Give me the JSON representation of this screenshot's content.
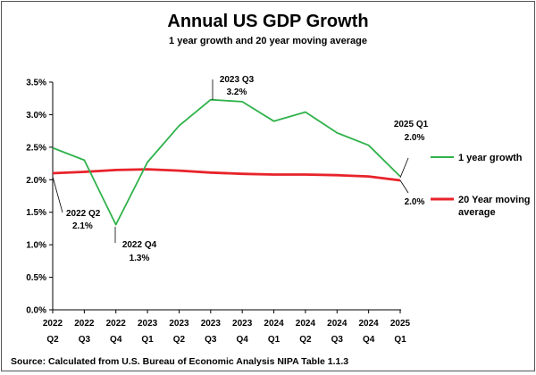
{
  "chart_data": {
    "type": "line",
    "title": "Annual US GDP Growth",
    "subtitle": "1 year growth and 20 year moving average",
    "source": "Source: Calculated from U.S. Bureau of Economic Analysis NIPA Table  1.1.3",
    "categories": [
      [
        "2022",
        "Q2"
      ],
      [
        "2022",
        "Q3"
      ],
      [
        "2022",
        "Q4"
      ],
      [
        "2023",
        "Q1"
      ],
      [
        "2023",
        "Q2"
      ],
      [
        "2023",
        "Q3"
      ],
      [
        "2023",
        "Q4"
      ],
      [
        "2024",
        "Q1"
      ],
      [
        "2024",
        "Q2"
      ],
      [
        "2024",
        "Q3"
      ],
      [
        "2024",
        "Q4"
      ],
      [
        "2025",
        "Q1"
      ]
    ],
    "ylim": [
      0,
      3.5
    ],
    "yticks": [
      "0.0%",
      "0.5%",
      "1.0%",
      "1.5%",
      "2.0%",
      "2.5%",
      "3.0%",
      "3.5%"
    ],
    "legend_position": "right",
    "series": [
      {
        "name": "1 year growth",
        "color": "#2fb24a",
        "values": [
          2.49,
          2.3,
          1.31,
          2.27,
          2.83,
          3.23,
          3.2,
          2.9,
          3.04,
          2.72,
          2.53,
          2.05
        ]
      },
      {
        "name": "20 Year moving average",
        "color": "#e8232a",
        "values": [
          2.1,
          2.12,
          2.15,
          2.16,
          2.14,
          2.11,
          2.09,
          2.08,
          2.08,
          2.07,
          2.05,
          1.99
        ]
      }
    ],
    "annotations": [
      {
        "line1": "2022 Q2",
        "line2": "2.1%"
      },
      {
        "line1": "2022 Q4",
        "line2": "1.3%"
      },
      {
        "line1": "2023 Q3",
        "line2": "3.2%"
      },
      {
        "line1": "2025 Q1",
        "line2": "2.0%"
      },
      {
        "line1": "2.0%",
        "line2": ""
      }
    ]
  }
}
